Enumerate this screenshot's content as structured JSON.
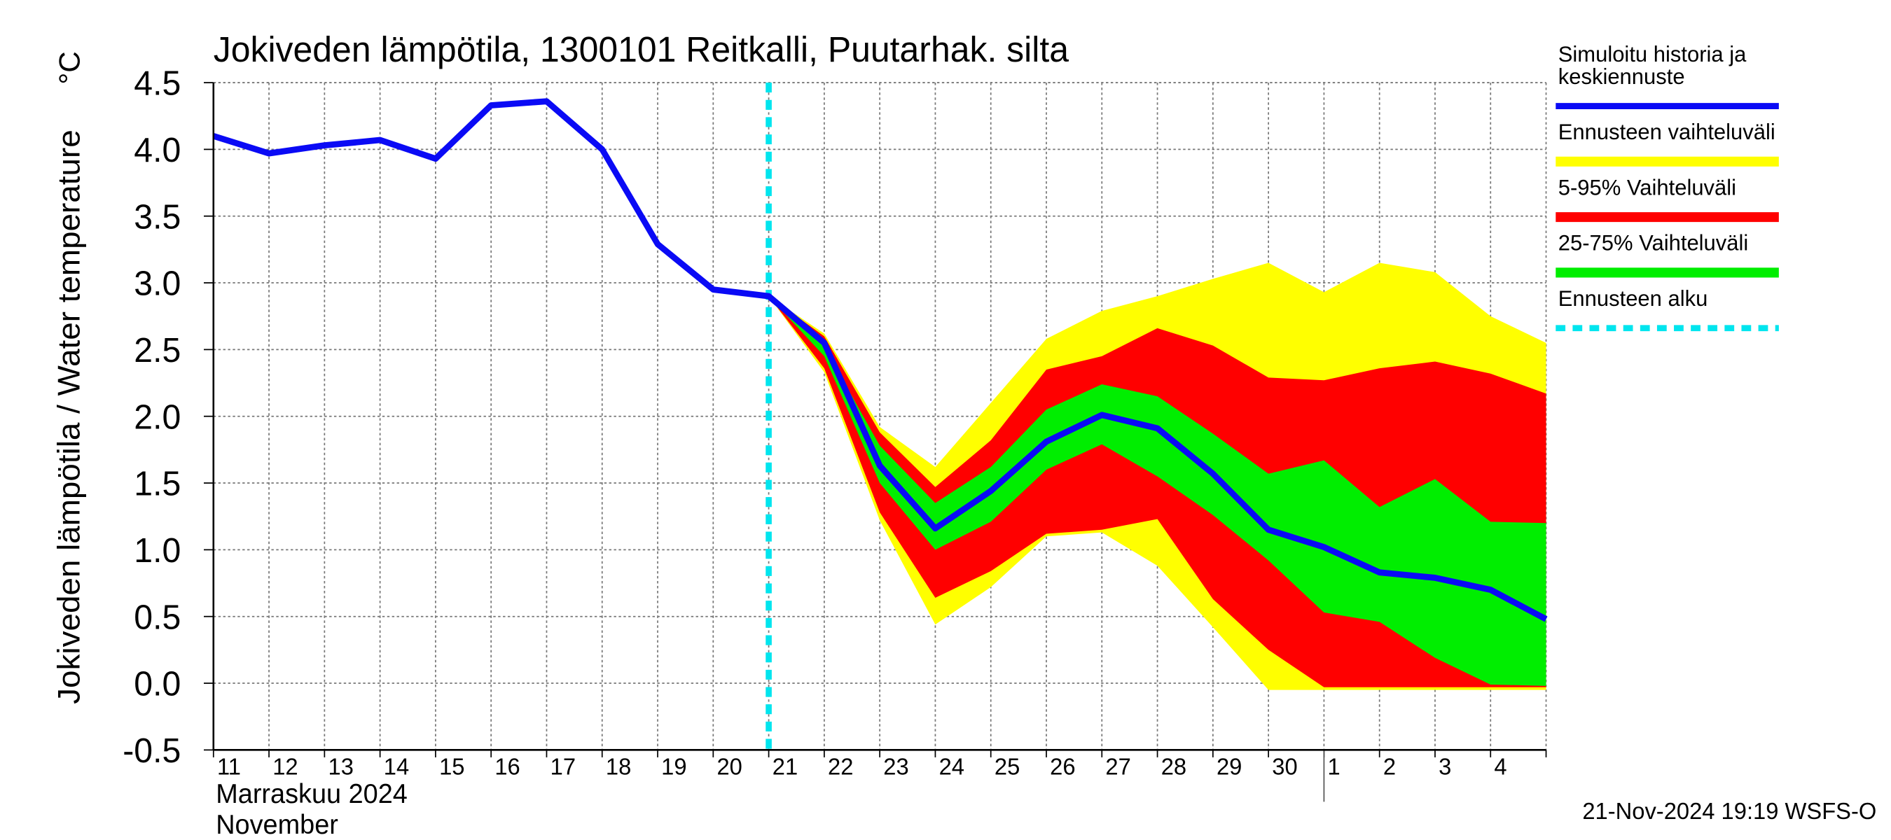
{
  "chart_data": {
    "type": "line",
    "title": "Jokiveden lämpötila, 1300101 Reitkalli, Puutarhak. silta",
    "ylabel": "Jokiveden lämpötila / Water temperature",
    "yunit": "°C",
    "xlabel_lines": [
      "Marraskuu 2024",
      "November"
    ],
    "footer": "21-Nov-2024 19:19 WSFS-O",
    "categories": [
      "11",
      "12",
      "13",
      "14",
      "15",
      "16",
      "17",
      "18",
      "19",
      "20",
      "21",
      "22",
      "23",
      "24",
      "25",
      "26",
      "27",
      "28",
      "29",
      "30",
      "1",
      "2",
      "3",
      "4",
      null
    ],
    "month_start_index": 20,
    "forecast_start_index": 10,
    "ylim": [
      -0.5,
      4.5
    ],
    "yticks": [
      -0.5,
      {
        "value": 0,
        "label": "0.0"
      },
      0.5,
      {
        "value": 1,
        "label": "1.0"
      },
      1.5,
      {
        "value": 2,
        "label": "2.0"
      },
      2.5,
      {
        "value": 3,
        "label": "3.0"
      },
      3.5,
      {
        "value": 4,
        "label": "4.0"
      },
      4.5
    ],
    "grid": true,
    "series": [
      {
        "name": "Simuloitu historia ja keskiennuste",
        "color": "#0a0af5",
        "kind": "line",
        "values": [
          4.1,
          3.97,
          4.03,
          4.07,
          3.93,
          4.33,
          4.36,
          4.0,
          3.29,
          2.95,
          2.9,
          2.55,
          1.63,
          1.16,
          1.44,
          1.81,
          2.01,
          1.91,
          1.57,
          1.15,
          1.02,
          0.83,
          0.79,
          0.7,
          0.48
        ]
      },
      {
        "name": "Ennusteen vaihteluväli",
        "color": "#ffff00",
        "kind": "band",
        "upper": [
          null,
          null,
          null,
          null,
          null,
          null,
          null,
          null,
          null,
          null,
          2.9,
          2.62,
          1.92,
          1.62,
          2.1,
          2.58,
          2.79,
          2.9,
          3.03,
          3.15,
          2.93,
          3.15,
          3.08,
          2.75,
          2.55
        ],
        "lower": [
          null,
          null,
          null,
          null,
          null,
          null,
          null,
          null,
          null,
          null,
          2.9,
          2.33,
          1.22,
          0.44,
          0.72,
          1.1,
          1.13,
          0.88,
          0.42,
          -0.05,
          -0.05,
          -0.05,
          -0.05,
          -0.05,
          -0.05
        ]
      },
      {
        "name": "5-95% Vaihteluväli",
        "color": "#ff0000",
        "kind": "band",
        "upper": [
          null,
          null,
          null,
          null,
          null,
          null,
          null,
          null,
          null,
          null,
          2.9,
          2.6,
          1.88,
          1.47,
          1.82,
          2.35,
          2.45,
          2.66,
          2.53,
          2.29,
          2.27,
          2.36,
          2.41,
          2.32,
          2.17
        ],
        "lower": [
          null,
          null,
          null,
          null,
          null,
          null,
          null,
          null,
          null,
          null,
          2.9,
          2.36,
          1.28,
          0.64,
          0.84,
          1.12,
          1.15,
          1.23,
          0.63,
          0.25,
          -0.03,
          -0.03,
          -0.03,
          -0.03,
          -0.03
        ]
      },
      {
        "name": "25-75% Vaihteluväli",
        "color": "#00ee00",
        "kind": "band",
        "upper": [
          null,
          null,
          null,
          null,
          null,
          null,
          null,
          null,
          null,
          null,
          2.9,
          2.52,
          1.78,
          1.35,
          1.62,
          2.05,
          2.24,
          2.15,
          1.87,
          1.57,
          1.67,
          1.32,
          1.53,
          1.21,
          1.2
        ],
        "lower": [
          null,
          null,
          null,
          null,
          null,
          null,
          null,
          null,
          null,
          null,
          2.9,
          2.45,
          1.5,
          1.0,
          1.21,
          1.6,
          1.79,
          1.55,
          1.26,
          0.92,
          0.53,
          0.46,
          0.19,
          -0.01,
          -0.02
        ]
      },
      {
        "name": "Ennusteen alku",
        "color": "#00e5ee",
        "kind": "marker"
      }
    ]
  }
}
